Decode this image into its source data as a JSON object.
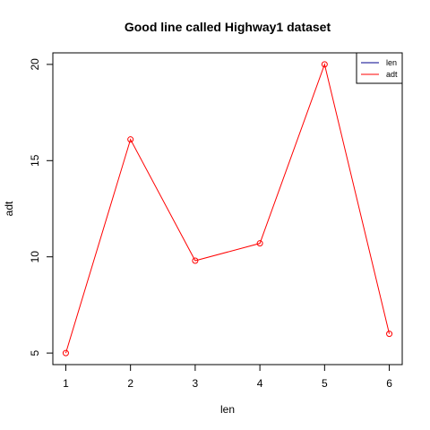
{
  "chart_data": {
    "type": "line",
    "title": "Good line called Highway1 dataset",
    "xlabel": "len",
    "ylabel": "adt",
    "x": [
      1,
      2,
      3,
      4,
      5,
      6
    ],
    "x_ticks": [
      "1",
      "2",
      "3",
      "4",
      "5",
      "6"
    ],
    "y_ticks": [
      "5",
      "10",
      "15",
      "20"
    ],
    "xlim": [
      0.8,
      6.2
    ],
    "ylim": [
      4.4,
      20.6
    ],
    "grid": false,
    "legend_position": "top-right",
    "legend": [
      {
        "name": "len",
        "color": "#00008b"
      },
      {
        "name": "adt",
        "color": "#ff0000"
      }
    ],
    "series": [
      {
        "name": "adt",
        "color": "#ff0000",
        "markers": "open-circle",
        "values": [
          5.0,
          16.1,
          9.8,
          10.7,
          20.0,
          6.0
        ]
      }
    ]
  }
}
